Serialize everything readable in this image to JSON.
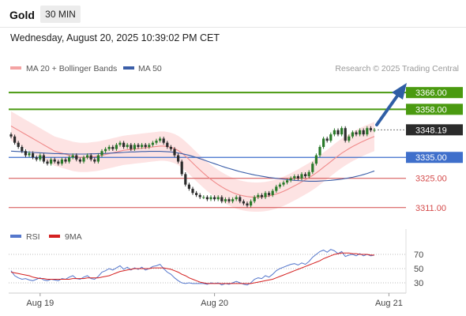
{
  "header": {
    "symbol": "Gold",
    "timeframe": "30 MIN"
  },
  "timestamp": "Wednesday, August 20, 2025 10:39:02 PM CET",
  "legend": {
    "items": [
      {
        "label": "MA 20 + Bollinger Bands",
        "color": "#f4a3a3"
      },
      {
        "label": "MA 50",
        "color": "#3b5ea8"
      }
    ],
    "watermark": "Research © 2025 Trading Central"
  },
  "rsi_legend": {
    "items": [
      {
        "label": "RSI",
        "color": "#5577cc"
      },
      {
        "label": "9MA",
        "color": "#d42020"
      }
    ]
  },
  "colors": {
    "up_candle": "#2a7a2a",
    "down_candle": "#2b2b2b",
    "target_green": "#4a9a10",
    "pivot_blue": "#3f6fcb",
    "support_red": "#d44a4a",
    "band_fill": "#fde3e3",
    "arrow": "#2f5ea5"
  },
  "levels": [
    {
      "value": 3366.0,
      "label": "3366.00",
      "kind": "target"
    },
    {
      "value": 3358.0,
      "label": "3358.00",
      "kind": "target"
    },
    {
      "value": 3348.19,
      "label": "3348.19",
      "kind": "last"
    },
    {
      "value": 3335.0,
      "label": "3335.00",
      "kind": "pivot"
    },
    {
      "value": 3325.0,
      "label": "3325.00",
      "kind": "support"
    },
    {
      "value": 3311.0,
      "label": "3311.00",
      "kind": "support"
    }
  ],
  "chart_data": {
    "type": "candlestick",
    "price_range": [
      3306,
      3374
    ],
    "x_labels": [
      {
        "index": 8,
        "label": "Aug 19"
      },
      {
        "index": 56,
        "label": "Aug 20"
      },
      {
        "index": 104,
        "label": "Aug 21"
      }
    ],
    "close": [
      3345,
      3342,
      3340,
      3338,
      3336,
      3337,
      3335,
      3334,
      3336,
      3333,
      3332,
      3334,
      3333,
      3332,
      3334,
      3333,
      3335,
      3336,
      3334,
      3333,
      3335,
      3336,
      3334,
      3333,
      3336,
      3338,
      3339,
      3340,
      3339,
      3341,
      3342,
      3340,
      3341,
      3339,
      3341,
      3340,
      3341,
      3340,
      3341,
      3342,
      3343,
      3344,
      3342,
      3340,
      3339,
      3336,
      3333,
      3327,
      3322,
      3320,
      3318,
      3317,
      3316,
      3316,
      3315,
      3316,
      3315,
      3316,
      3314,
      3315,
      3314,
      3315,
      3316,
      3314,
      3313,
      3312,
      3314,
      3316,
      3317,
      3316,
      3318,
      3317,
      3319,
      3321,
      3322,
      3323,
      3324,
      3325,
      3326,
      3325,
      3327,
      3326,
      3328,
      3332,
      3336,
      3340,
      3344,
      3343,
      3346,
      3348,
      3346,
      3349,
      3343,
      3345,
      3347,
      3346,
      3348,
      3346,
      3349,
      3348,
      3348.19
    ],
    "ma20": [
      3350,
      3349,
      3348,
      3347,
      3346,
      3345,
      3344,
      3343,
      3342,
      3341,
      3340,
      3339,
      3338,
      3337.5,
      3337,
      3336.5,
      3336,
      3335.5,
      3335.2,
      3335,
      3335,
      3335,
      3335.2,
      3335.4,
      3335.6,
      3336,
      3336.4,
      3336.8,
      3337.2,
      3337.6,
      3338,
      3338.4,
      3338.6,
      3338.8,
      3339,
      3339.2,
      3339.4,
      3339.6,
      3339.8,
      3340,
      3340.2,
      3340.4,
      3340.4,
      3340.2,
      3339.8,
      3339.2,
      3338.3,
      3337.1,
      3335.6,
      3334,
      3332.3,
      3330.6,
      3329,
      3327.4,
      3325.9,
      3324.5,
      3323.2,
      3322,
      3320.9,
      3319.9,
      3319,
      3318.2,
      3317.5,
      3317,
      3316.6,
      3316.3,
      3316.1,
      3316,
      3316,
      3316.1,
      3316.3,
      3316.6,
      3317,
      3317.5,
      3318.1,
      3318.8,
      3319.6,
      3320.5,
      3321.4,
      3322.3,
      3323.3,
      3324.3,
      3325.3,
      3326.4,
      3327.6,
      3328.9,
      3330.3,
      3331.6,
      3333,
      3334.4,
      3335.7,
      3337,
      3338.1,
      3339.2,
      3340.2,
      3341.1,
      3342,
      3342.8,
      3343.6,
      3344.3,
      3345
    ],
    "ma50": [
      3338,
      3337.9,
      3337.8,
      3337.7,
      3337.6,
      3337.5,
      3337.4,
      3337.3,
      3337.2,
      3337.1,
      3337,
      3336.9,
      3336.8,
      3336.8,
      3336.7,
      3336.7,
      3336.6,
      3336.6,
      3336.6,
      3336.6,
      3336.6,
      3336.6,
      3336.7,
      3336.7,
      3336.8,
      3336.8,
      3336.9,
      3337,
      3337.1,
      3337.2,
      3337.3,
      3337.4,
      3337.5,
      3337.6,
      3337.6,
      3337.7,
      3337.8,
      3337.8,
      3337.9,
      3337.9,
      3337.9,
      3337.9,
      3337.8,
      3337.7,
      3337.6,
      3337.4,
      3337.1,
      3336.8,
      3336.4,
      3336,
      3335.5,
      3335,
      3334.4,
      3333.8,
      3333.2,
      3332.6,
      3332,
      3331.4,
      3330.8,
      3330.2,
      3329.7,
      3329.2,
      3328.7,
      3328.2,
      3327.8,
      3327.4,
      3327,
      3326.6,
      3326.3,
      3326,
      3325.7,
      3325.4,
      3325.2,
      3325,
      3324.8,
      3324.6,
      3324.4,
      3324.2,
      3324,
      3323.9,
      3323.8,
      3323.7,
      3323.6,
      3323.6,
      3323.6,
      3323.7,
      3323.8,
      3323.9,
      3324,
      3324.2,
      3324.4,
      3324.6,
      3324.9,
      3325.2,
      3325.5,
      3325.9,
      3326.3,
      3326.8,
      3327.3,
      3327.9,
      3328.5
    ],
    "band_width": 7,
    "rsi": {
      "range": [
        20,
        80
      ],
      "ticks": [
        30,
        50,
        70
      ],
      "rsi": [
        47,
        40,
        37,
        35,
        36,
        34,
        33,
        35,
        37,
        34,
        33,
        35,
        34,
        33,
        36,
        35,
        38,
        40,
        36,
        35,
        38,
        40,
        36,
        35,
        39,
        45,
        47,
        50,
        48,
        51,
        54,
        49,
        52,
        48,
        51,
        49,
        52,
        48,
        50,
        53,
        54,
        56,
        50,
        45,
        42,
        37,
        33,
        30,
        29,
        30,
        29,
        29,
        29,
        29,
        28,
        30,
        29,
        30,
        27,
        29,
        28,
        30,
        32,
        30,
        28,
        27,
        30,
        35,
        37,
        36,
        40,
        38,
        42,
        47,
        50,
        52,
        54,
        56,
        57,
        55,
        58,
        56,
        60,
        66,
        70,
        74,
        76,
        73,
        77,
        75,
        71,
        74,
        67,
        69,
        70,
        68,
        71,
        68,
        70,
        68,
        69
      ],
      "ma9": [
        45,
        44,
        43,
        42,
        41,
        40,
        38,
        37,
        36,
        36,
        35,
        35,
        35,
        35,
        35,
        35,
        35,
        36,
        36,
        36,
        36,
        37,
        37,
        37,
        37,
        38,
        39,
        40,
        42,
        44,
        46,
        47,
        48,
        49,
        50,
        50,
        50,
        50,
        50,
        51,
        51,
        51,
        51,
        50,
        49,
        47,
        45,
        42,
        40,
        37,
        35,
        33,
        31,
        30,
        29,
        29,
        29,
        29,
        29,
        29,
        29,
        29,
        29,
        29,
        29,
        29,
        29,
        30,
        31,
        32,
        33,
        34,
        35,
        37,
        39,
        41,
        43,
        45,
        47,
        49,
        51,
        53,
        55,
        57,
        59,
        61,
        64,
        66,
        68,
        70,
        71,
        72,
        72,
        72,
        71,
        71,
        70,
        70,
        70,
        69,
        69
      ]
    }
  }
}
